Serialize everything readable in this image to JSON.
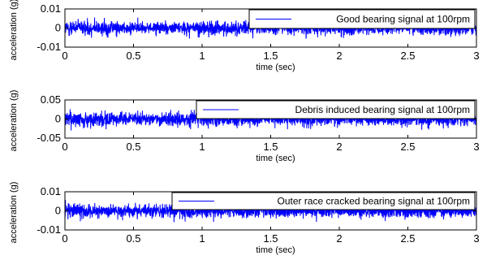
{
  "chart_data": [
    {
      "type": "line",
      "title": "",
      "xlabel": "time (sec)",
      "ylabel": "acceleration (g)",
      "xlim": [
        0,
        3
      ],
      "ylim": [
        -0.01,
        0.01
      ],
      "xticks": [
        0,
        0.5,
        1,
        1.5,
        2,
        2.5,
        3
      ],
      "xtick_labels": [
        "0",
        "0.5",
        "1",
        "1.5",
        "2",
        "2.5",
        "3"
      ],
      "yticks": [
        -0.01,
        0,
        0.01
      ],
      "ytick_labels": [
        "-0.01",
        "0",
        "0.01"
      ],
      "grid": false,
      "legend_position": "top-right",
      "series": [
        {
          "name": "Good bearing signal at 100rpm",
          "color": "#0000ff",
          "amplitude_envelope": [
            0.004,
            0.005
          ],
          "signal_range": [
            -0.007,
            0.006
          ]
        }
      ]
    },
    {
      "type": "line",
      "title": "",
      "xlabel": "time (sec)",
      "ylabel": "acceleration (g)",
      "xlim": [
        0,
        3
      ],
      "ylim": [
        -0.05,
        0.05
      ],
      "xticks": [
        0,
        0.5,
        1,
        1.5,
        2,
        2.5,
        3
      ],
      "xtick_labels": [
        "0",
        "0.5",
        "1",
        "1.5",
        "2",
        "2.5",
        "3"
      ],
      "yticks": [
        -0.05,
        0,
        0.05
      ],
      "ytick_labels": [
        "-0.05",
        "0",
        "0.05"
      ],
      "grid": false,
      "legend_position": "top-right",
      "series": [
        {
          "name": "Debris induced bearing signal at 100rpm",
          "color": "#0000ff",
          "amplitude_envelope": [
            0.02,
            0.025
          ],
          "signal_range": [
            -0.03,
            0.03
          ]
        }
      ]
    },
    {
      "type": "line",
      "title": "",
      "xlabel": "time (sec)",
      "ylabel": "acceleration (g)",
      "xlim": [
        0,
        3
      ],
      "ylim": [
        -0.01,
        0.01
      ],
      "xticks": [
        0,
        0.5,
        1,
        1.5,
        2,
        2.5,
        3
      ],
      "xtick_labels": [
        "0",
        "0.5",
        "1",
        "1.5",
        "2",
        "2.5",
        "3"
      ],
      "yticks": [
        -0.01,
        0,
        0.01
      ],
      "ytick_labels": [
        "-0.01",
        "0",
        "0.01"
      ],
      "grid": false,
      "legend_position": "top-right",
      "series": [
        {
          "name": "Outer race cracked bearing signal at 100rpm",
          "color": "#0000ff",
          "amplitude_envelope": [
            0.004,
            0.005
          ],
          "signal_range": [
            -0.008,
            0.006
          ]
        }
      ]
    }
  ]
}
